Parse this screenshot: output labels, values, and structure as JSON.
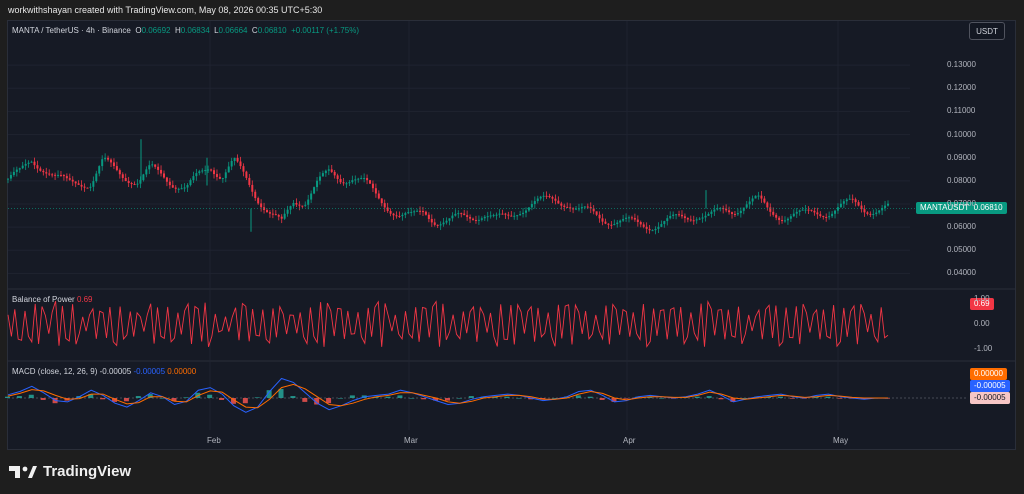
{
  "header_text": "workwithshayan created with TradingView.com, May 08, 2026 00:35 UTC+5:30",
  "legend": {
    "symbol": "MANTA / TetherUS · 4h · Binance",
    "o_label": "O",
    "o_value": "0.06692",
    "h_label": "H",
    "h_value": "0.06834",
    "l_label": "L",
    "l_value": "0.06664",
    "c_label": "C",
    "c_value": "0.06810",
    "change": "+0.00117 (+1.75%)"
  },
  "currency_button": "USDT",
  "last_price_tag": {
    "symbol": "MANTAUSDT",
    "value": "0.06810",
    "color": "#089981"
  },
  "colors": {
    "up": "#089981",
    "down": "#f23645",
    "bop": "#f23645",
    "macd_line": "#2962ff",
    "signal_line": "#ff6d00"
  },
  "chart_data": [
    {
      "type": "candlestick",
      "series": [
        {
          "name": "MANTA / TetherUS",
          "values": [
            0.081,
            0.083,
            0.089,
            0.086,
            0.081,
            0.079,
            0.08,
            0.079,
            0.088,
            0.085,
            0.082,
            0.079,
            0.085,
            0.083,
            0.079,
            0.076,
            0.082,
            0.087,
            0.082,
            0.088,
            0.081,
            0.073,
            0.066,
            0.061,
            0.071,
            0.072,
            0.079,
            0.083,
            0.081,
            0.082,
            0.079,
            0.073,
            0.069,
            0.065,
            0.064,
            0.067,
            0.063,
            0.062,
            0.064,
            0.065,
            0.066,
            0.063,
            0.064,
            0.068,
            0.07,
            0.071,
            0.072,
            0.071,
            0.067,
            0.066,
            0.064,
            0.063,
            0.062,
            0.061,
            0.061,
            0.062,
            0.063,
            0.064,
            0.066,
            0.065,
            0.066,
            0.067,
            0.071,
            0.072,
            0.066,
            0.065,
            0.066,
            0.065,
            0.066,
            0.067,
            0.069,
            0.07,
            0.068,
            0.068,
            0.0681
          ]
        }
      ],
      "ylim": [
        0.035,
        0.14
      ],
      "y_ticks": [
        "0.13000",
        "0.12000",
        "0.11000",
        "0.10000",
        "0.09000",
        "0.08000",
        "0.07000",
        "0.06000",
        "0.05000",
        "0.04000"
      ],
      "x_ticks": [
        "Feb",
        "Mar",
        "Apr",
        "May"
      ]
    },
    {
      "type": "line",
      "title": "Balance of Power",
      "value": "0.69",
      "series": [
        {
          "name": "Balance of Power",
          "values": [
            0.6,
            -0.7,
            0.8,
            -0.5,
            0.9,
            -0.8,
            0.4,
            -0.6,
            0.7,
            -0.9,
            0.5,
            -0.4,
            0.8,
            -0.7,
            0.6,
            -0.8,
            0.9,
            -0.5,
            0.3,
            -0.9,
            0.7,
            -0.6,
            0.8,
            -0.4,
            0.5,
            -0.8,
            0.9,
            -0.7,
            0.6,
            -0.5,
            0.8,
            -0.9,
            0.4,
            -0.6,
            0.7,
            -0.8,
            0.9,
            -0.4,
            0.6,
            -0.7,
            0.5,
            -0.9,
            0.8,
            -0.6,
            0.7,
            -0.5,
            0.9,
            -0.8,
            0.6,
            -0.4,
            0.8,
            -0.7,
            0.5,
            -0.9,
            0.7,
            -0.6,
            0.8,
            -0.5,
            0.9,
            -0.7,
            0.6,
            -0.8,
            0.4,
            -0.6,
            0.9,
            -0.7,
            0.8,
            -0.5,
            0.6,
            -0.9,
            0.7,
            -0.8,
            0.5,
            -0.7,
            0.69
          ]
        }
      ],
      "ylim": [
        -1.1,
        1.1
      ],
      "y_ticks": [
        "1.00",
        "0.00",
        "-1.00"
      ]
    },
    {
      "type": "line",
      "title": "MACD (close, 12, 26, 9)",
      "values_text": [
        "-0.00005",
        "-0.00005",
        "0.00000"
      ],
      "series": [
        {
          "name": "MACD",
          "values": [
            0.0005,
            0.001,
            0.0018,
            0.0008,
            -0.0004,
            -0.0006,
            0.0002,
            0.0012,
            0.0004,
            -0.0008,
            -0.0014,
            -0.0004,
            0.0008,
            0.0002,
            -0.001,
            -0.0005,
            0.0012,
            0.0016,
            0.0006,
            -0.0012,
            -0.0022,
            -0.0014,
            0.001,
            0.003,
            0.0024,
            0.0008,
            -0.0008,
            -0.0018,
            -0.0012,
            -0.0004,
            0.0002,
            0.0004,
            0.0006,
            0.0012,
            0.0008,
            0.0002,
            -0.0004,
            -0.001,
            -0.0008,
            -0.0002,
            0.0002,
            0.0004,
            0.0006,
            0.0004,
            0.0,
            -0.0004,
            -0.0002,
            0.0002,
            0.001,
            0.0012,
            0.0004,
            -0.0006,
            -0.0004,
            0.0002,
            0.0004,
            0.0002,
            0.0,
            0.0002,
            0.0006,
            0.0012,
            0.0004,
            -0.0006,
            -0.0002,
            0.0002,
            0.0004,
            0.0006,
            0.0002,
            0.0,
            0.0004,
            0.0006,
            0.0002,
            0.0,
            -0.0002,
            0.0,
            -5e-05
          ]
        },
        {
          "name": "Signal",
          "values": [
            0.0003,
            0.0007,
            0.0013,
            0.0011,
            0.0004,
            -0.0002,
            -0.0001,
            0.0006,
            0.0006,
            -0.0002,
            -0.0009,
            -0.0007,
            0.0002,
            0.0002,
            -0.0005,
            -0.0006,
            0.0004,
            0.0011,
            0.0009,
            -0.0003,
            -0.0014,
            -0.0015,
            -0.0002,
            0.0016,
            0.0021,
            0.0014,
            0.0002,
            -0.001,
            -0.0012,
            -0.0008,
            -0.0002,
            0.0002,
            0.0004,
            0.0008,
            0.0008,
            0.0004,
            0.0,
            -0.0006,
            -0.0008,
            -0.0005,
            0.0,
            0.0002,
            0.0004,
            0.0004,
            0.0002,
            -0.0002,
            -0.0002,
            0.0,
            0.0006,
            0.001,
            0.0007,
            0.0,
            -0.0003,
            0.0,
            0.0002,
            0.0002,
            0.0001,
            0.0001,
            0.0004,
            0.0009,
            0.0006,
            0.0,
            -0.0002,
            0.0,
            0.0002,
            0.0004,
            0.0003,
            0.0001,
            0.0002,
            0.0004,
            0.0003,
            0.0001,
            0.0,
            0.0,
            0.0
          ]
        }
      ],
      "ylim": [
        -0.004,
        0.004
      ],
      "price_tags": [
        "0.00000",
        "-0.00005",
        "-0.00005"
      ]
    }
  ],
  "footer": {
    "brand": "TradingView"
  }
}
